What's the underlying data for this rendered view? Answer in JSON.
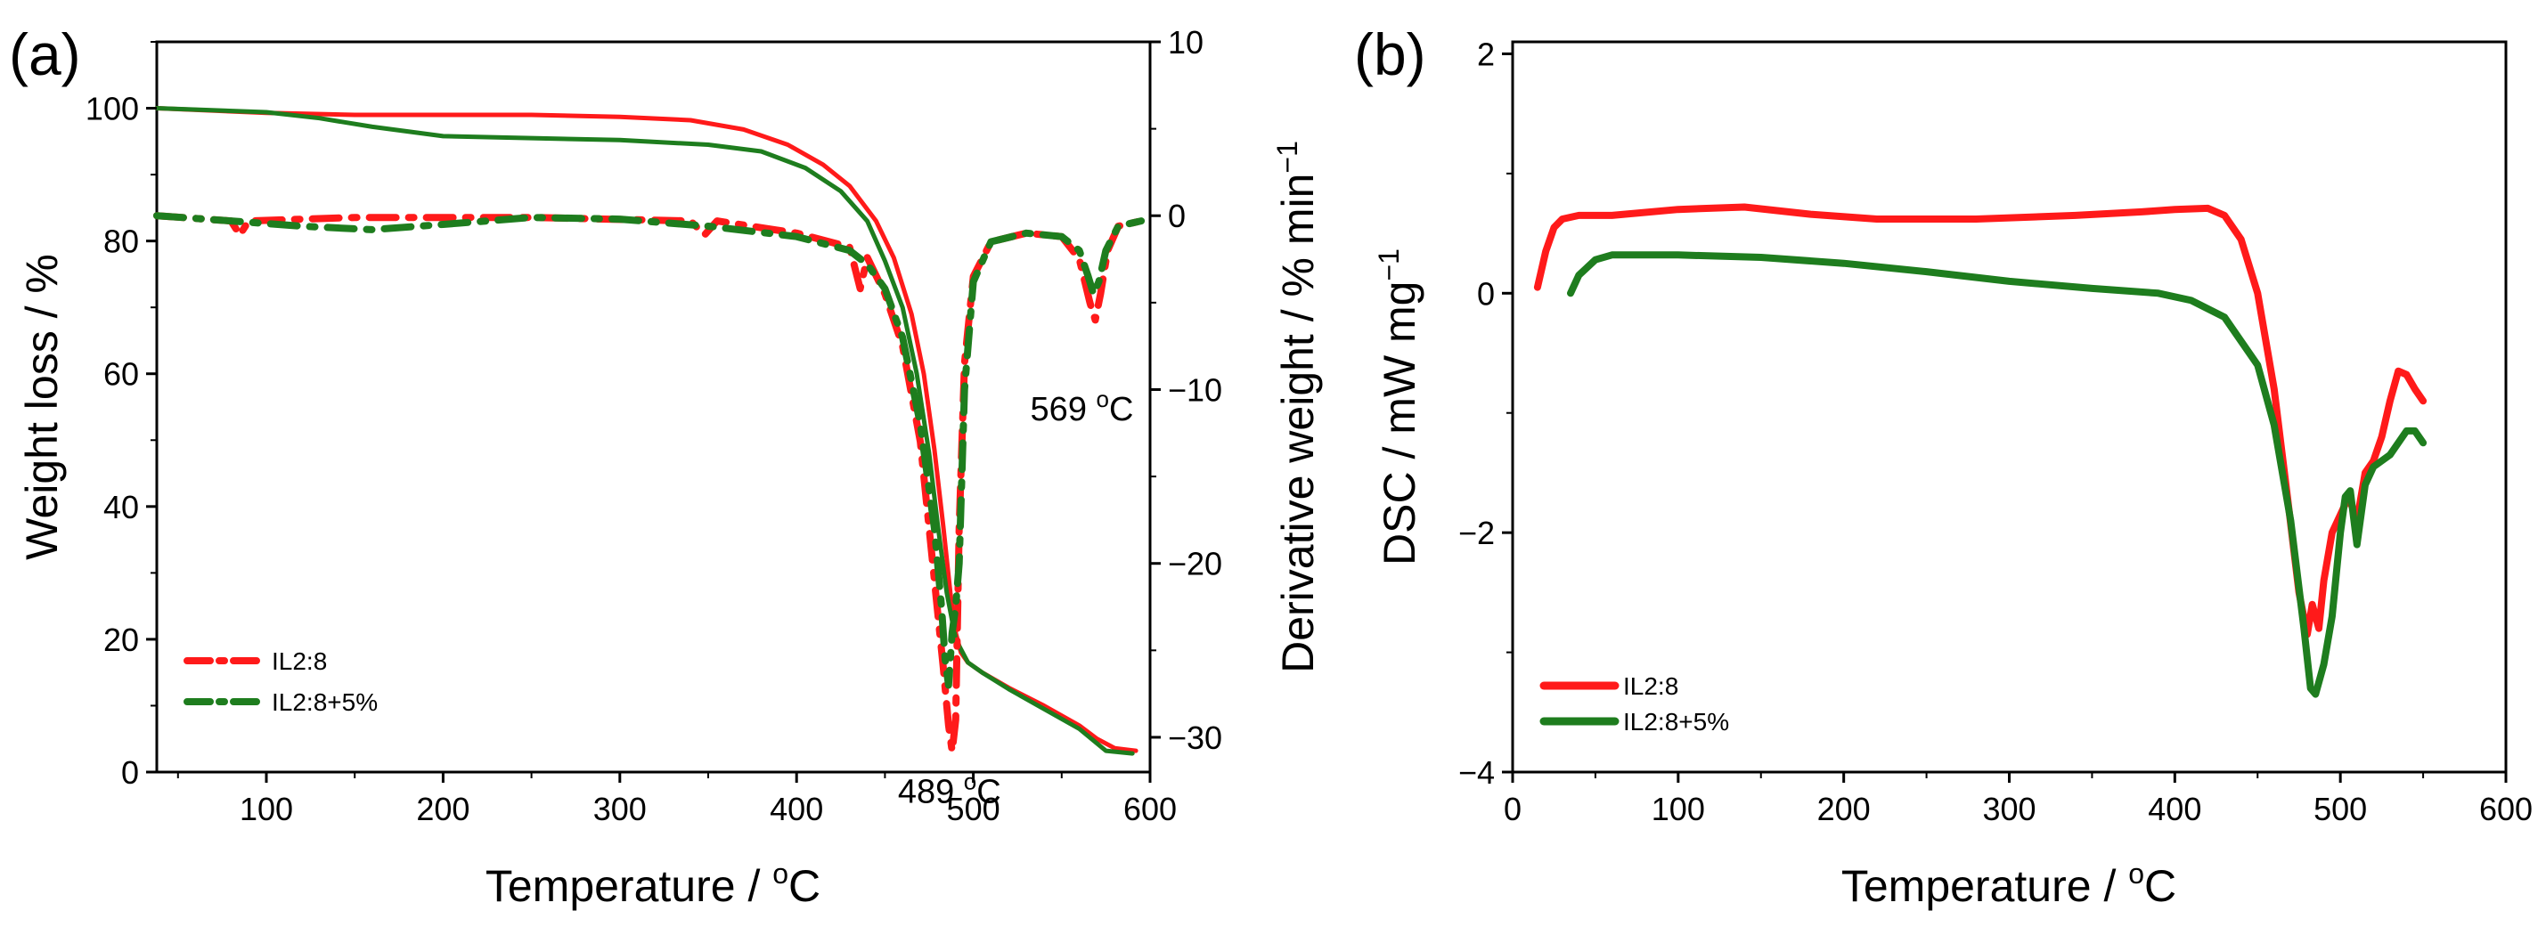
{
  "chart_data": [
    {
      "panel_label": "(a)",
      "type": "line",
      "xlabel": "Temperature / °C",
      "ylabel_left": "Weight loss / %",
      "ylabel_right": "Derivative weight / % min",
      "ylabel_right_sup": "−1",
      "xlim": [
        38,
        600
      ],
      "ylim_left": [
        0,
        110
      ],
      "ylim_right": [
        -32,
        10
      ],
      "xticks": [
        100,
        200,
        300,
        400,
        500,
        600
      ],
      "yticks_left": [
        0,
        20,
        40,
        60,
        80,
        100
      ],
      "yticks_right": [
        -30,
        -20,
        -10,
        0,
        10
      ],
      "yticks_right_labels": [
        "−30",
        "−20",
        "−10",
        "0",
        "10"
      ],
      "legend": {
        "position": "bottom-left",
        "style": "dashed",
        "entries": [
          "IL2:8",
          "IL2:8+5%"
        ]
      },
      "annotations": [
        {
          "text": "489 °C",
          "x": 489,
          "y_right": -30.8
        },
        {
          "text": "569 °C",
          "x": 569,
          "y_right": -8.8
        }
      ],
      "series": [
        {
          "name": "IL2:8",
          "axis": "left",
          "style": "solid",
          "color": "#ff1a1a",
          "x": [
            38,
            100,
            150,
            200,
            250,
            300,
            340,
            370,
            395,
            415,
            430,
            445,
            455,
            465,
            472,
            478,
            483,
            487,
            490,
            493,
            497,
            505,
            520,
            540,
            560,
            570,
            580,
            592
          ],
          "y": [
            100,
            99.3,
            99,
            99,
            99,
            98.7,
            98.2,
            96.8,
            94.5,
            91.5,
            88.3,
            83,
            77.5,
            69,
            60,
            48.5,
            37,
            27,
            21,
            18,
            16.5,
            15,
            12.7,
            10,
            7,
            5,
            3.6,
            3.2
          ]
        },
        {
          "name": "IL2:8+5%",
          "axis": "left",
          "style": "solid",
          "color": "#1e7d1e",
          "x": [
            38,
            100,
            130,
            160,
            200,
            250,
            300,
            350,
            380,
            405,
            425,
            440,
            450,
            460,
            468,
            475,
            480,
            485,
            490,
            497,
            505,
            520,
            540,
            560,
            575,
            590
          ],
          "y": [
            100,
            99.4,
            98.5,
            97.2,
            95.8,
            95.5,
            95.2,
            94.5,
            93.5,
            91,
            87.5,
            83,
            77,
            70,
            60,
            48,
            37,
            27,
            20,
            16.5,
            15,
            12.5,
            9.5,
            6.5,
            3.2,
            2.8
          ]
        },
        {
          "name": "IL2:8",
          "axis": "right",
          "style": "dashed",
          "color": "#ff1a1a",
          "x": [
            38,
            80,
            85,
            90,
            150,
            250,
            340,
            348,
            355,
            400,
            430,
            436,
            440,
            450,
            460,
            470,
            478,
            483,
            486,
            488,
            490,
            492,
            495,
            500,
            510,
            530,
            550,
            560,
            566,
            569,
            572,
            576,
            582,
            595
          ],
          "y": [
            0,
            -0.3,
            -1.1,
            -0.3,
            -0.1,
            -0.1,
            -0.3,
            -1.1,
            -0.3,
            -1,
            -1.8,
            -4.2,
            -2.4,
            -4.5,
            -7.5,
            -13,
            -21,
            -26,
            -29.3,
            -30.8,
            -29,
            -18,
            -8.5,
            -3.5,
            -1.5,
            -1,
            -1.2,
            -2.5,
            -5,
            -6,
            -4.5,
            -2,
            -0.6,
            -0.3
          ]
        },
        {
          "name": "IL2:8+5%",
          "axis": "right",
          "style": "dashed",
          "color": "#1e7d1e",
          "x": [
            38,
            80,
            120,
            160,
            200,
            250,
            300,
            350,
            400,
            430,
            440,
            450,
            460,
            470,
            478,
            482,
            484,
            486,
            488,
            490,
            492,
            495,
            500,
            510,
            530,
            550,
            560,
            565,
            568,
            571,
            575,
            582,
            595
          ],
          "y": [
            0,
            -0.3,
            -0.6,
            -0.8,
            -0.5,
            -0.1,
            -0.2,
            -0.6,
            -1.2,
            -2,
            -2.8,
            -4.2,
            -7,
            -12,
            -18,
            -22.5,
            -25.5,
            -27,
            -24,
            -22.5,
            -20,
            -10,
            -3.8,
            -1.5,
            -1,
            -1.2,
            -2,
            -3.5,
            -4.5,
            -3.8,
            -2,
            -0.6,
            -0.3
          ]
        }
      ]
    },
    {
      "panel_label": "(b)",
      "type": "line",
      "xlabel": "Temperature / °C",
      "ylabel": "DSC / mW mg",
      "ylabel_sup": "−1",
      "xlim": [
        0,
        600
      ],
      "ylim": [
        -4,
        2.1
      ],
      "xticks": [
        0,
        100,
        200,
        300,
        400,
        500,
        600
      ],
      "yticks": [
        -4,
        -2,
        0,
        2
      ],
      "yticks_labels": [
        "−4",
        "−2",
        "0",
        "2"
      ],
      "legend": {
        "position": "bottom-left",
        "style": "solid",
        "entries": [
          "IL2:8",
          "IL2:8+5%"
        ]
      },
      "series": [
        {
          "name": "IL2:8",
          "color": "#ff1a1a",
          "x": [
            15,
            20,
            25,
            30,
            40,
            60,
            100,
            140,
            180,
            220,
            280,
            340,
            380,
            400,
            420,
            430,
            440,
            450,
            460,
            468,
            475,
            480,
            483,
            487,
            490,
            495,
            500,
            505,
            510,
            515,
            520,
            525,
            530,
            535,
            540,
            545,
            550
          ],
          "y": [
            0.05,
            0.35,
            0.55,
            0.62,
            0.65,
            0.65,
            0.7,
            0.72,
            0.66,
            0.62,
            0.62,
            0.65,
            0.68,
            0.7,
            0.71,
            0.65,
            0.45,
            0.0,
            -0.8,
            -1.7,
            -2.5,
            -2.85,
            -2.6,
            -2.8,
            -2.4,
            -2.0,
            -1.85,
            -1.7,
            -1.9,
            -1.5,
            -1.4,
            -1.2,
            -0.9,
            -0.65,
            -0.68,
            -0.8,
            -0.9
          ]
        },
        {
          "name": "IL2:8+5%",
          "color": "#1e7d1e",
          "x": [
            35,
            40,
            50,
            60,
            100,
            150,
            200,
            250,
            300,
            350,
            390,
            410,
            430,
            450,
            460,
            470,
            478,
            482,
            485,
            490,
            495,
            500,
            503,
            506,
            510,
            515,
            520,
            530,
            540,
            545,
            550
          ],
          "y": [
            0.0,
            0.15,
            0.28,
            0.32,
            0.32,
            0.3,
            0.25,
            0.18,
            0.1,
            0.04,
            0.0,
            -0.06,
            -0.2,
            -0.6,
            -1.1,
            -1.9,
            -2.8,
            -3.3,
            -3.35,
            -3.1,
            -2.7,
            -2.0,
            -1.7,
            -1.65,
            -2.1,
            -1.6,
            -1.45,
            -1.35,
            -1.15,
            -1.15,
            -1.25
          ]
        }
      ]
    }
  ]
}
